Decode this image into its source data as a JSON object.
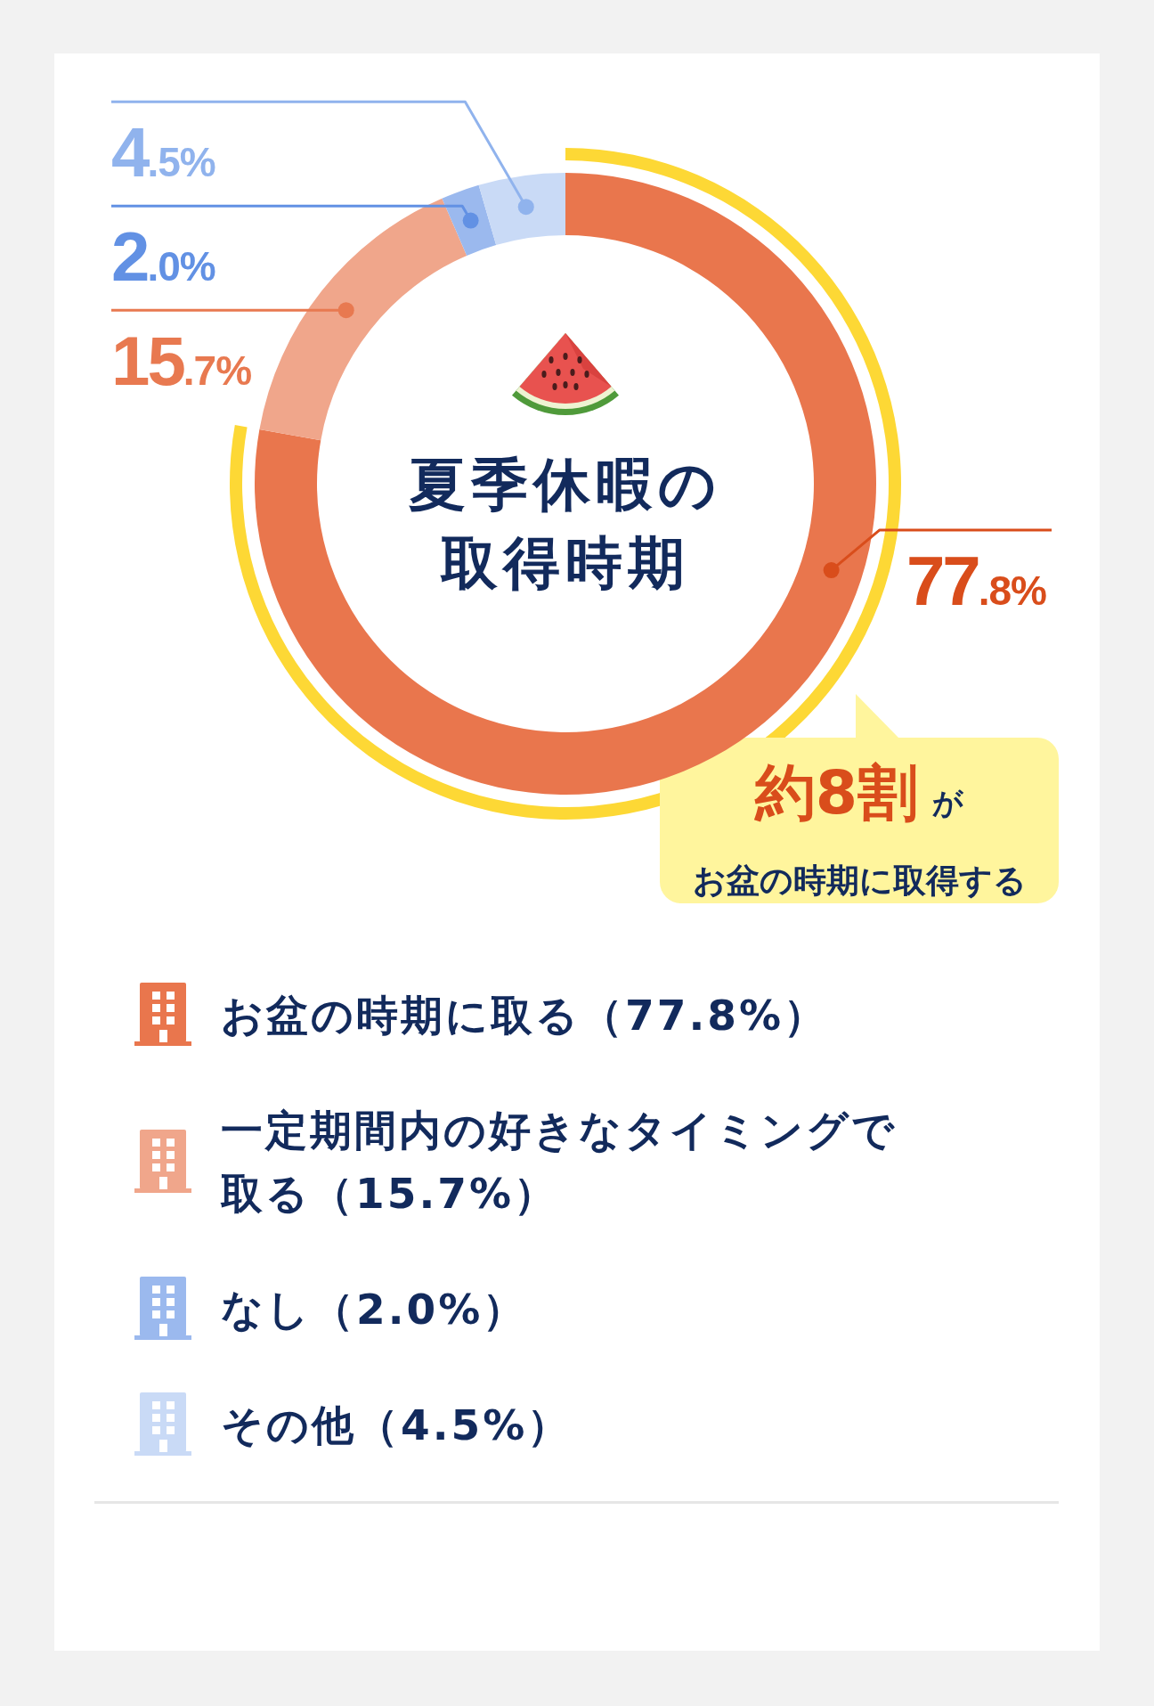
{
  "chart_data": {
    "type": "donut",
    "title": "夏季休暇の取得時期",
    "categories": [
      "お盆の時期に取る（77.8%）",
      "一定期間内の好きなタイミングで取る（15.7%）",
      "なし（2.0%）",
      "その他（4.5%）"
    ],
    "values": [
      77.8,
      15.7,
      2.0,
      4.5
    ],
    "colors": [
      "#e9764d",
      "#f0a68b",
      "#9bb9ee",
      "#c9daf6"
    ],
    "value_labels": [
      "77.8%",
      "15.7%",
      "2.0%",
      "4.5%"
    ],
    "legend": "bottom",
    "annotations": [
      {
        "text": "約8割が",
        "x": "お盆の時期に取る（77.8%）"
      },
      "お盆の時期に取得する"
    ]
  }
}
